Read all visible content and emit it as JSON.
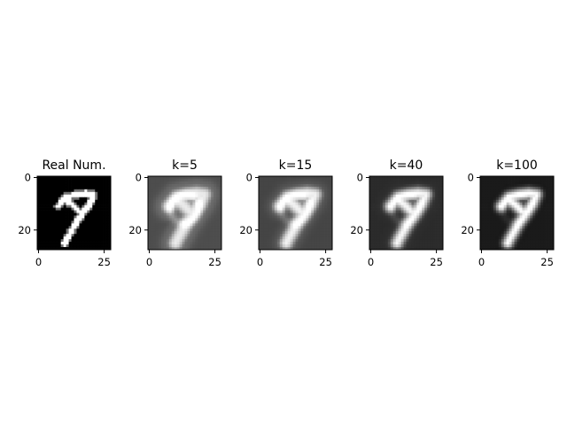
{
  "chart_data": [
    {
      "type": "heatmap",
      "title": "Real Num.",
      "colormap": "gray",
      "rows": 28,
      "cols": 28,
      "xlim": [
        -0.5,
        27.5
      ],
      "ylim": [
        27.5,
        -0.5
      ],
      "xticks": [
        0,
        25
      ],
      "yticks": [
        0,
        20
      ],
      "background_level": 0.0,
      "stroke_level": 1.0,
      "blur": 0.0
    },
    {
      "type": "heatmap",
      "title": "k=5",
      "colormap": "gray",
      "rows": 28,
      "cols": 28,
      "xlim": [
        -0.5,
        27.5
      ],
      "ylim": [
        27.5,
        -0.5
      ],
      "xticks": [
        0,
        25
      ],
      "yticks": [
        0,
        20
      ],
      "background_level": 0.3,
      "stroke_level": 0.92,
      "blur": 2.2
    },
    {
      "type": "heatmap",
      "title": "k=15",
      "colormap": "gray",
      "rows": 28,
      "cols": 28,
      "xlim": [
        -0.5,
        27.5
      ],
      "ylim": [
        27.5,
        -0.5
      ],
      "xticks": [
        0,
        25
      ],
      "yticks": [
        0,
        20
      ],
      "background_level": 0.27,
      "stroke_level": 0.95,
      "blur": 1.6
    },
    {
      "type": "heatmap",
      "title": "k=40",
      "colormap": "gray",
      "rows": 28,
      "cols": 28,
      "xlim": [
        -0.5,
        27.5
      ],
      "ylim": [
        27.5,
        -0.5
      ],
      "xticks": [
        0,
        25
      ],
      "yticks": [
        0,
        20
      ],
      "background_level": 0.17,
      "stroke_level": 0.97,
      "blur": 1.1
    },
    {
      "type": "heatmap",
      "title": "k=100",
      "colormap": "gray",
      "rows": 28,
      "cols": 28,
      "xlim": [
        -0.5,
        27.5
      ],
      "ylim": [
        27.5,
        -0.5
      ],
      "xticks": [
        0,
        25
      ],
      "yticks": [
        0,
        20
      ],
      "background_level": 0.1,
      "stroke_level": 1.0,
      "blur": 0.8
    }
  ]
}
